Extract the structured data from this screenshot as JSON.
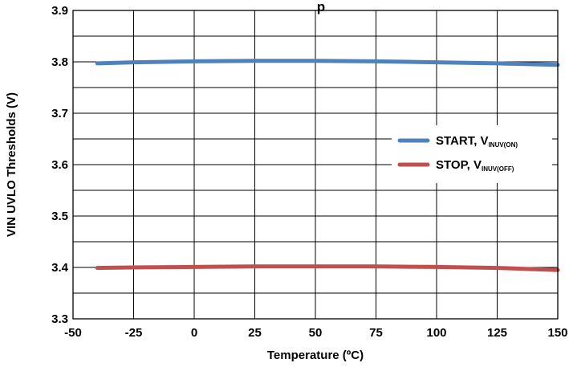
{
  "chart_data": {
    "type": "line",
    "title": "p",
    "xlabel": "Temperature (ºC)",
    "ylabel": "VIN UVLO Thresholds (V)",
    "xlim": [
      -50,
      150
    ],
    "ylim": [
      3.3,
      3.9
    ],
    "x_ticks": [
      "-50",
      "-25",
      "0",
      "25",
      "50",
      "75",
      "100",
      "125",
      "150"
    ],
    "y_ticks": [
      "3.3",
      "3.4",
      "3.5",
      "3.6",
      "3.7",
      "3.8",
      "3.9"
    ],
    "grid": true,
    "legend_position": "right",
    "series": [
      {
        "name": "START, V",
        "name_sub": "INUV(ON)",
        "color": "#4f81bd",
        "x": [
          -40,
          -25,
          0,
          25,
          50,
          75,
          100,
          125,
          150
        ],
        "values": [
          3.797,
          3.799,
          3.801,
          3.802,
          3.802,
          3.801,
          3.799,
          3.797,
          3.794
        ]
      },
      {
        "name": "STOP, V",
        "name_sub": "INUV(OFF)",
        "color": "#c0504d",
        "x": [
          -40,
          -25,
          0,
          25,
          50,
          75,
          100,
          125,
          150
        ],
        "values": [
          3.399,
          3.4,
          3.401,
          3.402,
          3.402,
          3.402,
          3.401,
          3.399,
          3.395
        ]
      }
    ]
  }
}
